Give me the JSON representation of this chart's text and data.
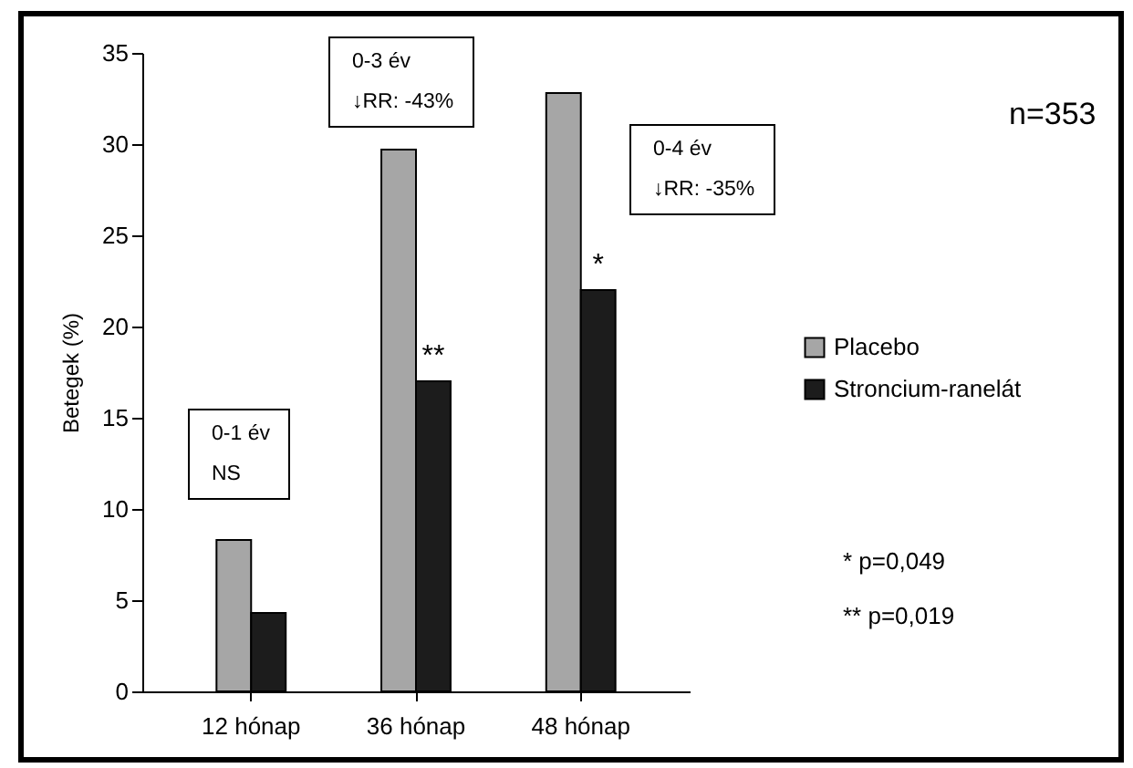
{
  "chart_data": {
    "type": "bar",
    "ylabel": "Betegek (%)",
    "categories": [
      "12 hónap",
      "36 hónap",
      "48 hónap"
    ],
    "series": [
      {
        "name": "Placebo",
        "color": "#a6a6a6",
        "values": [
          8.3,
          29.7,
          32.8
        ]
      },
      {
        "name": "Stroncium-ranelát",
        "color": "#1c1c1c",
        "values": [
          4.3,
          17.0,
          22.0
        ]
      }
    ],
    "ylim": [
      0,
      35
    ],
    "yticks": [
      0,
      5,
      10,
      15,
      20,
      25,
      30,
      35
    ],
    "grid": false,
    "legend": "right",
    "annotations": [
      "0-1 év\nNS",
      "0-3 év\n↓RR: -43%",
      "0-4 év\n↓RR: -35%",
      "n=353",
      "* p=0,049",
      "** p=0,019",
      {
        "text": "**",
        "x": "36 hónap",
        "y": 17.0
      },
      {
        "text": "*",
        "x": "48 hónap",
        "y": 22.0
      }
    ]
  }
}
